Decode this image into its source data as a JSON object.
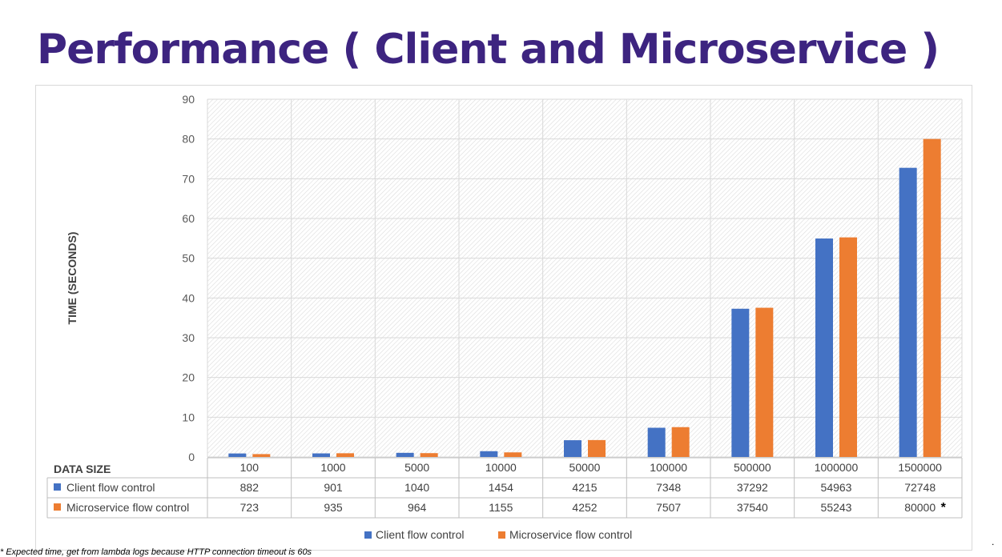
{
  "title": "Performance ( Client and Microservice )",
  "footnote": "* Expected time, get from lambda logs because HTTP connection timeout is 60s",
  "corner_mark": ".",
  "chart_data": {
    "type": "bar",
    "ylabel": "TIME (SECONDS)",
    "table_header": "DATA SIZE",
    "categories": [
      "100",
      "1000",
      "5000",
      "10000",
      "50000",
      "100000",
      "500000",
      "1000000",
      "1500000"
    ],
    "ylim": [
      0,
      90
    ],
    "yticks": [
      0,
      10,
      20,
      30,
      40,
      50,
      60,
      70,
      80,
      90
    ],
    "grid": true,
    "legend_position": "bottom",
    "series": [
      {
        "name": "Client flow control",
        "color": "#4472c4",
        "values": [
          0.882,
          0.901,
          1.04,
          1.454,
          4.215,
          7.348,
          37.292,
          54.963,
          72.748
        ],
        "labels": [
          "882",
          "901",
          "1040",
          "1454",
          "4215",
          "7348",
          "37292",
          "54963",
          "72748"
        ]
      },
      {
        "name": "Microservice flow control",
        "color": "#ed7d31",
        "values": [
          0.723,
          0.935,
          0.964,
          1.155,
          4.252,
          7.507,
          37.54,
          55.243,
          80.0
        ],
        "labels": [
          "723",
          "935",
          "964",
          "1155",
          "4252",
          "7507",
          "37540",
          "55243",
          "80000"
        ]
      }
    ],
    "annotations": [
      {
        "series": 1,
        "category": 8,
        "text": "*"
      }
    ]
  }
}
